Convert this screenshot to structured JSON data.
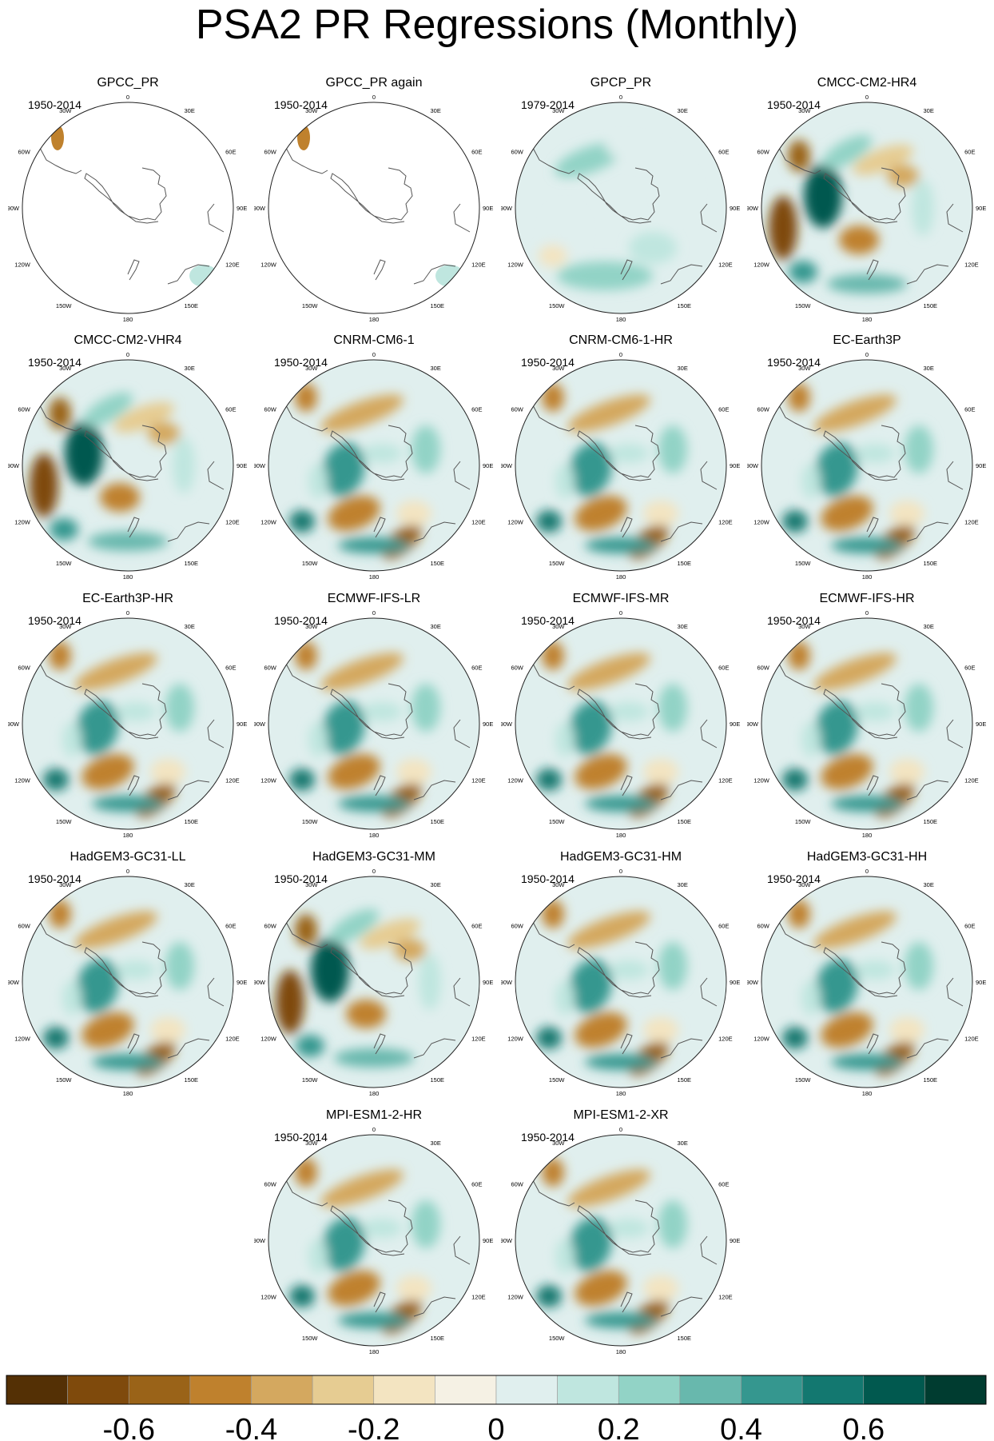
{
  "title": "PSA2 PR Regressions (Monthly)",
  "panels": [
    {
      "name": "GPCC_PR",
      "period": "1950-2014",
      "pattern": "obs"
    },
    {
      "name": "GPCC_PR again",
      "period": "1950-2014",
      "pattern": "obs"
    },
    {
      "name": "GPCP_PR",
      "period": "1979-2014",
      "pattern": "weak"
    },
    {
      "name": "CMCC-CM2-HR4",
      "period": "1950-2014",
      "pattern": "strong"
    },
    {
      "name": "CMCC-CM2-VHR4",
      "period": "1950-2014",
      "pattern": "strong"
    },
    {
      "name": "CNRM-CM6-1",
      "period": "1950-2014",
      "pattern": "model"
    },
    {
      "name": "CNRM-CM6-1-HR",
      "period": "1950-2014",
      "pattern": "model"
    },
    {
      "name": "EC-Earth3P",
      "period": "1950-2014",
      "pattern": "model"
    },
    {
      "name": "EC-Earth3P-HR",
      "period": "1950-2014",
      "pattern": "model"
    },
    {
      "name": "ECMWF-IFS-LR",
      "period": "1950-2014",
      "pattern": "model"
    },
    {
      "name": "ECMWF-IFS-MR",
      "period": "1950-2014",
      "pattern": "model"
    },
    {
      "name": "ECMWF-IFS-HR",
      "period": "1950-2014",
      "pattern": "model"
    },
    {
      "name": "HadGEM3-GC31-LL",
      "period": "1950-2014",
      "pattern": "model"
    },
    {
      "name": "HadGEM3-GC31-MM",
      "period": "1950-2014",
      "pattern": "strong"
    },
    {
      "name": "HadGEM3-GC31-HM",
      "period": "1950-2014",
      "pattern": "model"
    },
    {
      "name": "HadGEM3-GC31-HH",
      "period": "1950-2014",
      "pattern": "model"
    },
    {
      "name": "MPI-ESM1-2-HR",
      "period": "1950-2014",
      "pattern": "model"
    },
    {
      "name": "MPI-ESM1-2-XR",
      "period": "1950-2014",
      "pattern": "model"
    }
  ],
  "lon_labels": [
    "0",
    "30E",
    "60E",
    "90E",
    "120E",
    "150E",
    "180",
    "150W",
    "120W",
    "90W",
    "60W",
    "30W"
  ],
  "colorbar": {
    "colors": [
      "#543005",
      "#7f4a0c",
      "#9a6318",
      "#bf812d",
      "#d4a85f",
      "#e6cc92",
      "#f3e4c1",
      "#f5f1e4",
      "#e0efee",
      "#bfe6df",
      "#92d3c6",
      "#68b8ad",
      "#35978f",
      "#137870",
      "#01594f",
      "#003c30"
    ],
    "tick_labels": [
      "-0.6",
      "-0.4",
      "-0.2",
      "0",
      "0.2",
      "0.4",
      "0.6"
    ]
  },
  "chart_data": {
    "type": "heatmap",
    "title": "PSA2 PR Regressions (Monthly)",
    "projection": "south polar stereographic",
    "levels": [
      -0.7,
      -0.6,
      -0.5,
      -0.4,
      -0.3,
      -0.2,
      -0.1,
      0,
      0.1,
      0.2,
      0.3,
      0.4,
      0.5,
      0.6,
      0.7
    ],
    "colorbar_range": [
      -0.8,
      0.8
    ]
  }
}
